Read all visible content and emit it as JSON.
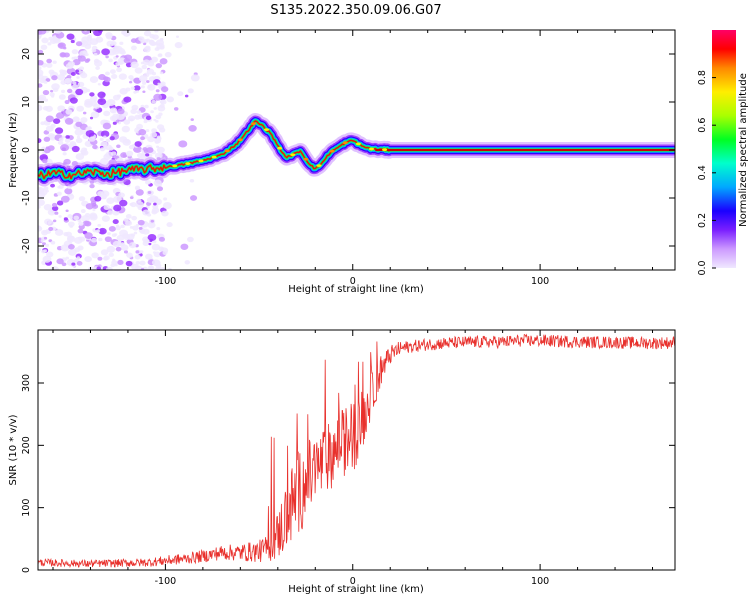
{
  "figure_title": "S135.2022.350.09.06.G07",
  "colors": {
    "background": "#ffffff",
    "snr_line": "#e8302c",
    "ridge_core": "#cc0000",
    "colormap": [
      "#f0e8ff",
      "#cc99ff",
      "#9933ff",
      "#3300ff",
      "#00b0ff",
      "#00ff66",
      "#ccff00",
      "#ffee00",
      "#ff8800",
      "#ff0000",
      "#ff0066"
    ]
  },
  "chart_data": [
    {
      "type": "heatmap",
      "xlabel": "Height of straight line (km)",
      "ylabel": "Frequency (Hz)",
      "xlim": [
        -168,
        172
      ],
      "ylim": [
        -25,
        25
      ],
      "x_ticks": [
        -100,
        0,
        100
      ],
      "y_ticks": [
        -20,
        -10,
        0,
        10,
        20
      ],
      "grid": false,
      "ridge": {
        "x": [
          -168,
          -160,
          -150,
          -140,
          -130,
          -120,
          -110,
          -100,
          -90,
          -80,
          -70,
          -62,
          -56,
          -52,
          -48,
          -44,
          -40,
          -36,
          -32,
          -28,
          -24,
          -20,
          -16,
          -12,
          -8,
          -4,
          0,
          5,
          10,
          20,
          40,
          80,
          120,
          172
        ],
        "y": [
          -5.5,
          -4.8,
          -5.2,
          -4.5,
          -5.0,
          -4.2,
          -4.0,
          -3.6,
          -3.0,
          -2.2,
          -1.0,
          1.2,
          4.0,
          6.0,
          5.0,
          3.5,
          1.0,
          -1.5,
          -1.0,
          -0.2,
          -2.5,
          -4.0,
          -2.5,
          -0.5,
          0.5,
          1.5,
          2.0,
          0.8,
          0.2,
          0.0,
          0.0,
          0.0,
          0.0,
          0.0
        ]
      },
      "noise_region_x": [
        -168,
        -100
      ],
      "colorbar": {
        "label": "Normalized spectral amplitude",
        "range": [
          0,
          1
        ],
        "ticks": [
          0.0,
          0.2,
          0.4,
          0.6,
          0.8
        ]
      }
    },
    {
      "type": "line",
      "xlabel": "Height of straight line (km)",
      "ylabel": "SNR (10 * v/v)",
      "xlim": [
        -168,
        172
      ],
      "ylim": [
        0,
        385
      ],
      "x_ticks": [
        -100,
        0,
        100
      ],
      "y_ticks": [
        0,
        100,
        200,
        300
      ],
      "grid": false,
      "series": [
        {
          "x": [
            -168,
            -140,
            -110,
            -90,
            -80,
            -70,
            -60,
            -50,
            -45,
            -40,
            -35,
            -30,
            -25,
            -20,
            -15,
            -10,
            -5,
            0,
            5,
            10,
            15,
            20,
            25,
            30,
            40,
            50,
            60,
            70,
            80,
            90,
            100,
            110,
            120,
            140,
            160,
            172
          ],
          "y": [
            12,
            10,
            12,
            18,
            22,
            28,
            28,
            30,
            35,
            55,
            90,
            120,
            140,
            160,
            175,
            190,
            205,
            215,
            240,
            280,
            320,
            345,
            355,
            358,
            362,
            364,
            365,
            366,
            366,
            368,
            368,
            367,
            366,
            365,
            364,
            365
          ],
          "noise_amplitude": [
            6,
            6,
            7,
            9,
            10,
            12,
            14,
            18,
            22,
            40,
            60,
            70,
            65,
            60,
            55,
            55,
            55,
            60,
            50,
            35,
            25,
            15,
            12,
            10,
            10,
            10,
            10,
            10,
            10,
            10,
            10,
            10,
            10,
            10,
            10,
            10
          ]
        }
      ]
    }
  ]
}
